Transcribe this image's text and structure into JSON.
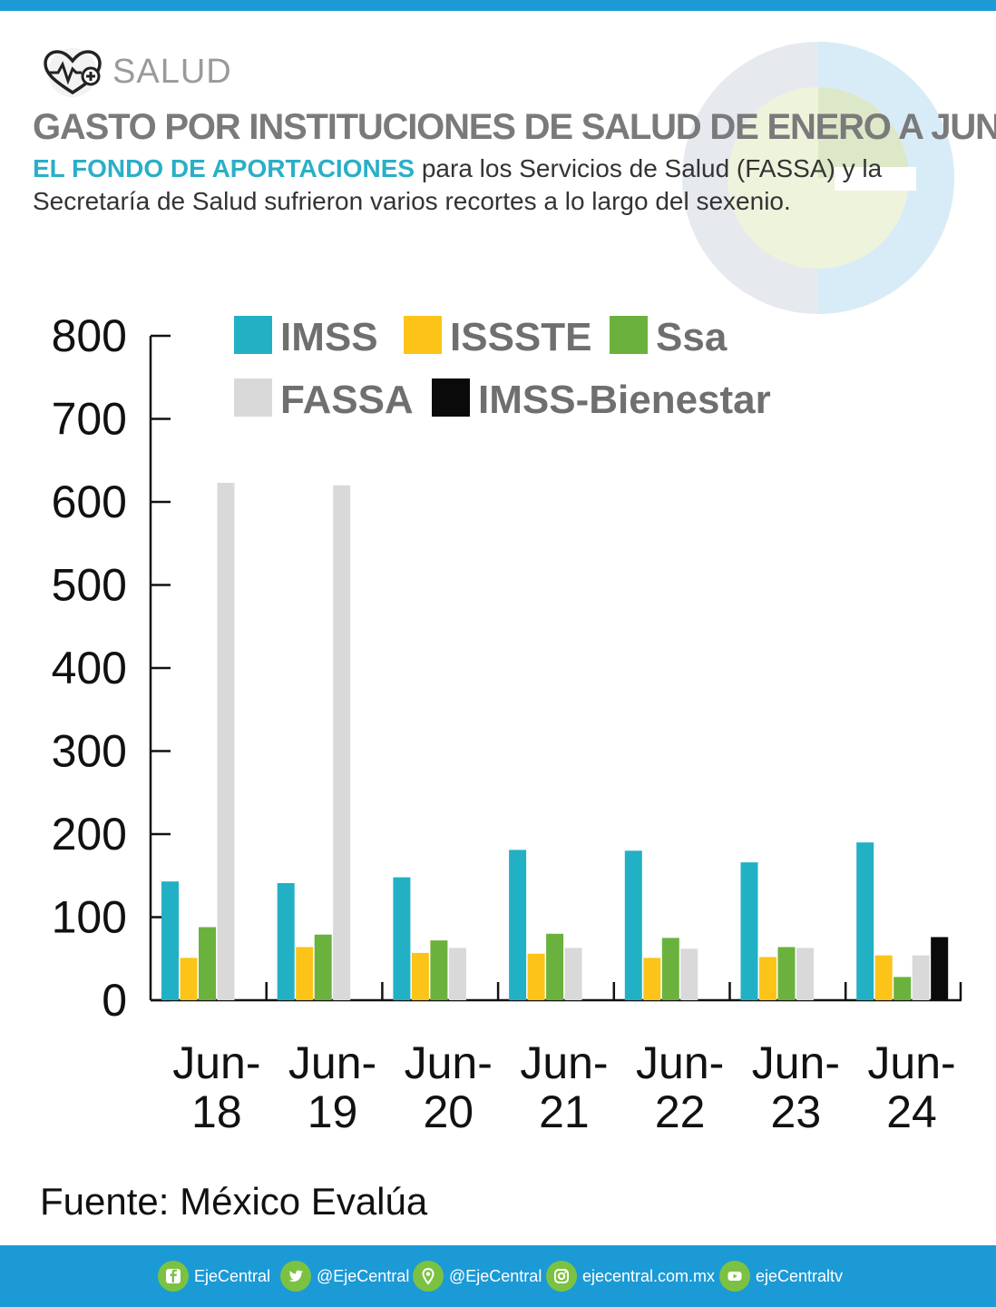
{
  "header": {
    "section": "SALUD",
    "title": "GASTO POR INSTITUCIONES DE SALUD DE ENERO A JUNIO",
    "subtitle_highlight": "EL FONDO DE APORTACIONES",
    "subtitle_rest": "para los Servicios de Salud (FASSA) y la Secretaría de Salud sufrieron varios recortes a lo largo del sexenio."
  },
  "chart_data": {
    "type": "bar",
    "title": "GASTO POR INSTITUCIONES DE SALUD DE ENERO A JUNIO",
    "categories": [
      [
        "Jun-",
        "18"
      ],
      [
        "Jun-",
        "19"
      ],
      [
        "Jun-",
        "20"
      ],
      [
        "Jun-",
        "21"
      ],
      [
        "Jun-",
        "22"
      ],
      [
        "Jun-",
        "23"
      ],
      [
        "Jun-",
        "24"
      ]
    ],
    "ylim": [
      0,
      800
    ],
    "yticks": [
      0,
      100,
      200,
      300,
      400,
      500,
      600,
      700,
      800
    ],
    "xlabel": "",
    "ylabel": "",
    "legend_position": "top",
    "series": [
      {
        "name": "IMSS",
        "color": "#22b0c4",
        "values": [
          143,
          141,
          148,
          181,
          180,
          166,
          190
        ]
      },
      {
        "name": "ISSSTE",
        "color": "#fcc419",
        "values": [
          51,
          64,
          57,
          56,
          51,
          52,
          54
        ]
      },
      {
        "name": "Ssa",
        "color": "#6ab23d",
        "values": [
          88,
          79,
          72,
          80,
          75,
          64,
          28
        ]
      },
      {
        "name": "FASSA",
        "color": "#d9d9d9",
        "values": [
          623,
          620,
          63,
          63,
          62,
          63,
          54
        ]
      },
      {
        "name": "IMSS-Bienestar",
        "color": "#0a0a0a",
        "values": [
          null,
          null,
          null,
          null,
          null,
          null,
          76
        ]
      }
    ]
  },
  "source": "Fuente: México Evalúa",
  "footer": {
    "links": [
      {
        "icon": "facebook-icon",
        "label": "EjeCentral"
      },
      {
        "icon": "twitter-icon",
        "label": "@EjeCentral"
      },
      {
        "icon": "location-pin-icon",
        "label": "@EjeCentral"
      },
      {
        "icon": "instagram-icon",
        "label": "ejecentral.com.mx"
      },
      {
        "icon": "youtube-icon",
        "label": "ejeCentraltv"
      }
    ]
  }
}
